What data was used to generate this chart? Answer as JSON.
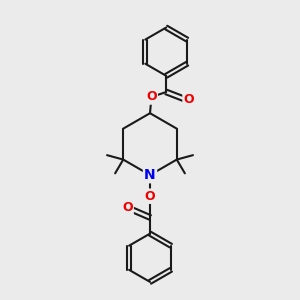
{
  "bg_color": "#ebebeb",
  "bond_color": "#1a1a1a",
  "N_color": "#0000ee",
  "O_color": "#ee0000",
  "bond_width": 1.5,
  "figsize": [
    3.0,
    3.0
  ],
  "dpi": 100,
  "xlim": [
    0,
    10
  ],
  "ylim": [
    0,
    10
  ]
}
